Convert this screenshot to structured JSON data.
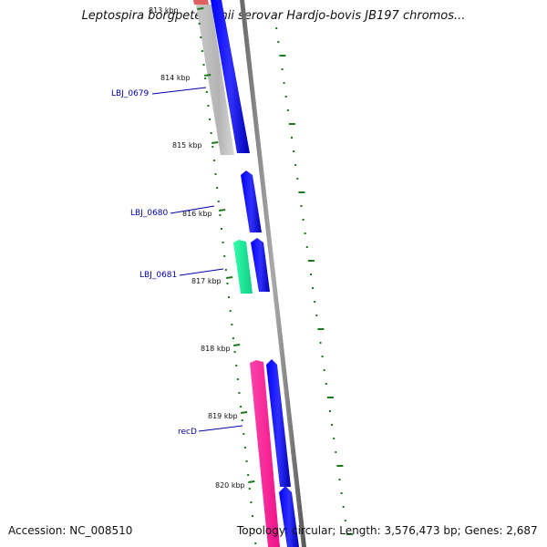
{
  "title": "Leptospira borgpetersenii serovar Hardjo-bovis JB197 chromos...",
  "footer": {
    "accession": "Accession: NC_008510",
    "stats": "Topology: circular; Length: 3,576,473 bp; Genes: 2,687"
  },
  "ruler": {
    "labels": [
      "813 kbp",
      "814 kbp",
      "815 kbp",
      "816 kbp",
      "817 kbp",
      "818 kbp",
      "819 kbp",
      "820 kbp"
    ],
    "tick_color": "#1a7a1a"
  },
  "genes": [
    {
      "name": "LBJ_0679",
      "strand": "+",
      "color": "#0000ee"
    },
    {
      "name": "LBJ_0680",
      "strand": "+",
      "color": "#0000ee"
    },
    {
      "name": "LBJ_0681",
      "strand": "-",
      "color": "#22ee99"
    },
    {
      "name": "recD",
      "strand": "-",
      "color": "#ff1493"
    }
  ],
  "colors": {
    "forward_gene": "#0000ee",
    "reverse_gene_grey": "#b0b0b0",
    "reverse_gene_green": "#22ee99",
    "reverse_gene_pink": "#ff1493",
    "reverse_gene_red": "#e05050",
    "backbone": "#888888",
    "label_blue": "#0000aa"
  }
}
